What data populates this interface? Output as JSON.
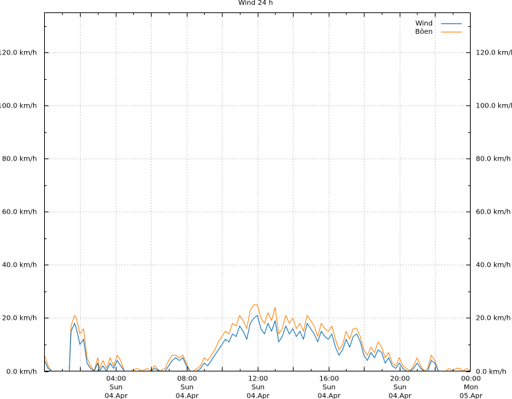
{
  "chart_data": {
    "type": "line",
    "title": "Wind 24 h",
    "xlabel": "",
    "ylabel": "",
    "ylim": [
      0,
      135
    ],
    "yunit": "km/h",
    "y_ticks": [
      {
        "value": 0,
        "label": "0.0 km/h"
      },
      {
        "value": 20,
        "label": "20.0 km/h"
      },
      {
        "value": 40,
        "label": "40.0 km/h"
      },
      {
        "value": 60,
        "label": "60.0 km/h"
      },
      {
        "value": 80,
        "label": "80.0 km/h"
      },
      {
        "value": 100,
        "label": "100.0 km/h"
      },
      {
        "value": 120,
        "label": "120.0 km/h"
      }
    ],
    "xlim_hours": [
      0,
      24
    ],
    "x_ticks": [
      {
        "hour": 4,
        "time": "04:00",
        "day": "Sun",
        "date": "04.Apr"
      },
      {
        "hour": 8,
        "time": "08:00",
        "day": "Sun",
        "date": "04.Apr"
      },
      {
        "hour": 12,
        "time": "12:00",
        "day": "Sun",
        "date": "04.Apr"
      },
      {
        "hour": 16,
        "time": "16:00",
        "day": "Sun",
        "date": "04.Apr"
      },
      {
        "hour": 20,
        "time": "20:00",
        "day": "Sun",
        "date": "04.Apr"
      },
      {
        "hour": 24,
        "time": "00:00",
        "day": "Mon",
        "date": "05.Apr"
      }
    ],
    "grid": true,
    "legend_position": "top-right",
    "series": [
      {
        "name": "Wind",
        "color": "#0066b3",
        "x": [
          0,
          0.2,
          0.4,
          1.4,
          1.5,
          1.7,
          1.8,
          2.0,
          2.2,
          2.4,
          2.6,
          2.8,
          3.0,
          3.1,
          3.3,
          3.5,
          3.7,
          3.9,
          4.1,
          4.3,
          4.5,
          4.7,
          4.9,
          5.2,
          5.5,
          5.8,
          6.0,
          6.2,
          6.5,
          6.8,
          7.0,
          7.2,
          7.4,
          7.6,
          7.8,
          8.0,
          8.2,
          8.4,
          8.6,
          8.8,
          9.0,
          9.2,
          9.4,
          9.6,
          9.8,
          10.0,
          10.2,
          10.4,
          10.6,
          10.8,
          11.0,
          11.2,
          11.4,
          11.6,
          11.8,
          12.0,
          12.2,
          12.4,
          12.6,
          12.8,
          13.0,
          13.2,
          13.4,
          13.6,
          13.8,
          14.0,
          14.2,
          14.4,
          14.6,
          14.8,
          15.0,
          15.2,
          15.4,
          15.6,
          15.8,
          16.0,
          16.2,
          16.4,
          16.6,
          16.8,
          17.0,
          17.2,
          17.4,
          17.6,
          17.8,
          18.0,
          18.2,
          18.4,
          18.6,
          18.8,
          19.0,
          19.2,
          19.4,
          19.6,
          19.8,
          20.0,
          20.2,
          20.4,
          20.6,
          20.8,
          21.0,
          21.2,
          21.4,
          21.6,
          21.8,
          22.0,
          22.2,
          22.4,
          22.6,
          22.8,
          23.0,
          23.2,
          23.4,
          23.6,
          23.8,
          24.0
        ],
        "values": [
          4,
          1,
          0,
          0,
          15,
          18,
          16,
          10,
          12,
          3,
          1,
          0,
          3,
          0,
          2,
          0,
          3,
          1,
          4,
          2,
          0,
          0,
          0,
          0,
          0,
          0,
          0,
          1,
          0,
          0,
          2,
          4,
          5,
          4,
          5,
          2,
          0,
          0,
          0,
          1,
          3,
          2,
          4,
          6,
          8,
          10,
          12,
          11,
          14,
          13,
          17,
          15,
          12,
          18,
          20,
          21,
          16,
          14,
          18,
          15,
          19,
          11,
          13,
          17,
          14,
          16,
          13,
          15,
          12,
          18,
          16,
          14,
          11,
          15,
          13,
          12,
          14,
          9,
          6,
          8,
          12,
          9,
          13,
          14,
          11,
          6,
          4,
          7,
          5,
          8,
          7,
          3,
          5,
          2,
          1,
          3,
          1,
          0,
          0,
          1,
          3,
          1,
          0,
          0,
          4,
          3,
          0,
          0,
          0,
          0,
          0,
          0,
          0,
          0,
          0,
          0
        ]
      },
      {
        "name": "Böen",
        "color": "#ff7f00",
        "x": [
          0,
          0.2,
          0.4,
          1.4,
          1.5,
          1.7,
          1.8,
          2.0,
          2.2,
          2.4,
          2.6,
          2.8,
          3.0,
          3.1,
          3.3,
          3.5,
          3.7,
          3.9,
          4.1,
          4.3,
          4.5,
          4.7,
          4.9,
          5.2,
          5.5,
          5.8,
          6.0,
          6.2,
          6.5,
          6.8,
          7.0,
          7.2,
          7.4,
          7.6,
          7.8,
          8.0,
          8.2,
          8.4,
          8.6,
          8.8,
          9.0,
          9.2,
          9.4,
          9.6,
          9.8,
          10.0,
          10.2,
          10.4,
          10.6,
          10.8,
          11.0,
          11.2,
          11.4,
          11.6,
          11.8,
          12.0,
          12.2,
          12.4,
          12.6,
          12.8,
          13.0,
          13.2,
          13.4,
          13.6,
          13.8,
          14.0,
          14.2,
          14.4,
          14.6,
          14.8,
          15.0,
          15.2,
          15.4,
          15.6,
          15.8,
          16.0,
          16.2,
          16.4,
          16.6,
          16.8,
          17.0,
          17.2,
          17.4,
          17.6,
          17.8,
          18.0,
          18.2,
          18.4,
          18.6,
          18.8,
          19.0,
          19.2,
          19.4,
          19.6,
          19.8,
          20.0,
          20.2,
          20.4,
          20.6,
          20.8,
          21.0,
          21.2,
          21.4,
          21.6,
          21.8,
          22.0,
          22.2,
          22.4,
          22.6,
          22.8,
          23.0,
          23.2,
          23.4,
          23.6,
          23.8,
          24.0
        ],
        "values": [
          6,
          2,
          0,
          0,
          17,
          21,
          20,
          14,
          16,
          5,
          2,
          0,
          5,
          1,
          4,
          1,
          5,
          2,
          6,
          4,
          0,
          0,
          0,
          1,
          0,
          1,
          0,
          2,
          0,
          1,
          4,
          6,
          6,
          5,
          6,
          3,
          0,
          0,
          1,
          2,
          5,
          4,
          6,
          8,
          11,
          13,
          15,
          14,
          18,
          17,
          21,
          19,
          16,
          23,
          25,
          25,
          20,
          18,
          22,
          19,
          24,
          14,
          16,
          21,
          18,
          20,
          16,
          18,
          15,
          21,
          19,
          17,
          13,
          18,
          16,
          15,
          17,
          12,
          8,
          10,
          15,
          12,
          16,
          16,
          13,
          8,
          6,
          9,
          7,
          11,
          9,
          5,
          7,
          3,
          2,
          5,
          2,
          1,
          0,
          2,
          5,
          2,
          0,
          1,
          6,
          4,
          0,
          0,
          0,
          1,
          0,
          1,
          1,
          0,
          1,
          0
        ]
      }
    ]
  }
}
